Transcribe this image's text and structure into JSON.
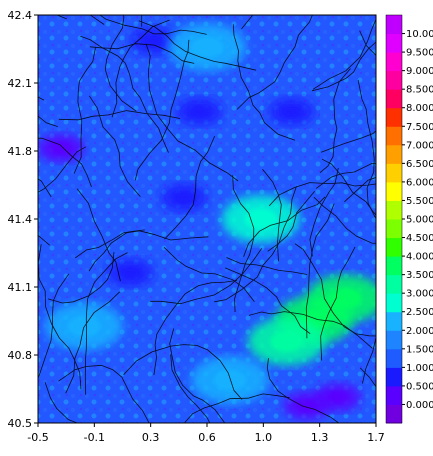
{
  "chart_data": {
    "type": "heatmap",
    "title": "",
    "xlabel": "",
    "ylabel": "",
    "xlim": [
      -0.5,
      1.7
    ],
    "ylim": [
      40.5,
      42.4
    ],
    "x_ticks": [
      "-0.5",
      "-0.1",
      "0.3",
      "0.6",
      "1.0",
      "1.3",
      "1.7"
    ],
    "y_ticks": [
      "40.5",
      "40.8",
      "41.1",
      "41.4",
      "41.8",
      "42.1",
      "42.4"
    ],
    "overlay": "streamlines",
    "grid": false,
    "legend_position": "right",
    "colorbar": {
      "labels": [
        "0.000",
        "0.500",
        "1.000",
        "1.500",
        "2.000",
        "2.500",
        "3.000",
        "3.500",
        "4.000",
        "4.500",
        "5.000",
        "5.500",
        "6.000",
        "6.500",
        "7.000",
        "7.500",
        "8.000",
        "8.500",
        "9.000",
        "9.500",
        "10.00"
      ],
      "colors": [
        "#7000e0",
        "#5a00ff",
        "#1a1aff",
        "#1f5cff",
        "#1f84ff",
        "#18b2ff",
        "#00ffd0",
        "#00ffa0",
        "#00ff60",
        "#30ff00",
        "#7cff00",
        "#b0ff00",
        "#ffff00",
        "#ffd000",
        "#ffa000",
        "#ff7000",
        "#ff3000",
        "#ff0060",
        "#ff00a0",
        "#ff00d0",
        "#e000ff",
        "#c000ff"
      ]
    },
    "features": [
      {
        "x": 0.25,
        "y": 42.28,
        "value": 0.6
      },
      {
        "x": 0.55,
        "y": 41.95,
        "value": 0.8
      },
      {
        "x": 1.15,
        "y": 41.95,
        "value": 0.5
      },
      {
        "x": -0.35,
        "y": 41.78,
        "value": 0.3
      },
      {
        "x": 0.45,
        "y": 41.55,
        "value": 0.6
      },
      {
        "x": 0.1,
        "y": 41.2,
        "value": 0.7
      },
      {
        "x": 1.45,
        "y": 40.62,
        "value": 0.2
      },
      {
        "x": 1.25,
        "y": 40.58,
        "value": 0.3
      },
      {
        "x": 0.95,
        "y": 41.45,
        "value": 2.6
      },
      {
        "x": 1.5,
        "y": 41.08,
        "value": 3.8
      },
      {
        "x": 1.3,
        "y": 40.98,
        "value": 3.5
      },
      {
        "x": 1.12,
        "y": 40.88,
        "value": 3.2
      },
      {
        "x": 0.75,
        "y": 40.7,
        "value": 2.4
      },
      {
        "x": -0.2,
        "y": 40.95,
        "value": 2.2
      },
      {
        "x": 0.6,
        "y": 42.25,
        "value": 2.1
      }
    ]
  }
}
